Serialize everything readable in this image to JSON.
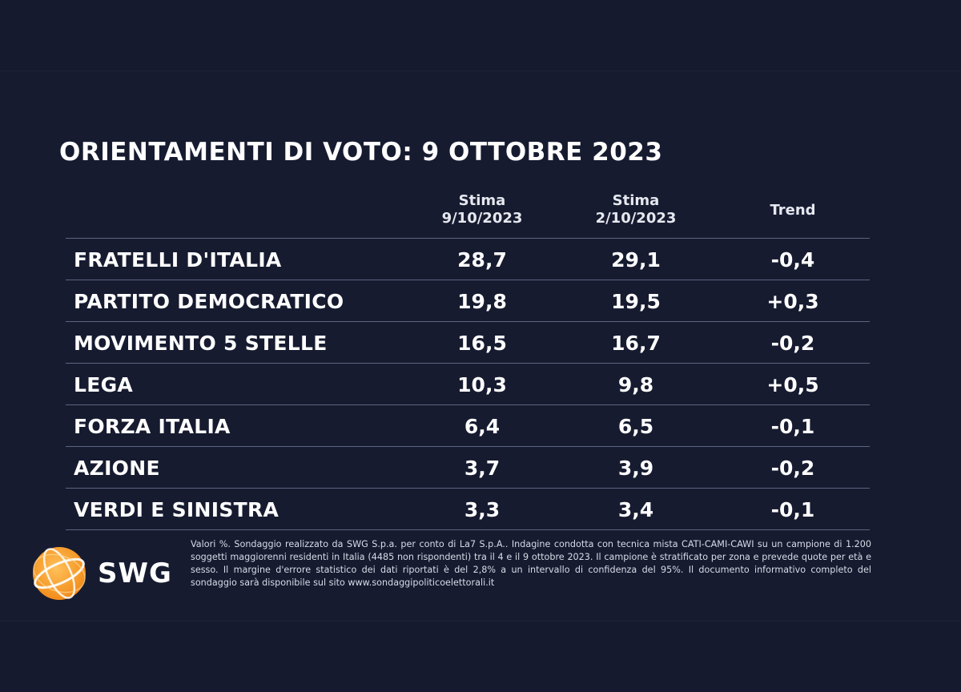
{
  "chart_data": {
    "type": "table",
    "title": "ORIENTAMENTI DI VOTO: 9 OTTOBRE 2023",
    "columns": [
      {
        "line1": "Stima",
        "line2": "9/10/2023"
      },
      {
        "line1": "Stima",
        "line2": "2/10/2023"
      },
      {
        "line1": "Trend",
        "line2": ""
      }
    ],
    "rows": [
      {
        "party": "FRATELLI D'ITALIA",
        "v1": "28,7",
        "v2": "29,1",
        "trend": "-0,4"
      },
      {
        "party": "PARTITO DEMOCRATICO",
        "v1": "19,8",
        "v2": "19,5",
        "trend": "+0,3"
      },
      {
        "party": "MOVIMENTO 5 STELLE",
        "v1": "16,5",
        "v2": "16,7",
        "trend": "-0,2"
      },
      {
        "party": "LEGA",
        "v1": "10,3",
        "v2": "9,8",
        "trend": "+0,5"
      },
      {
        "party": "FORZA ITALIA",
        "v1": "6,4",
        "v2": "6,5",
        "trend": "-0,1"
      },
      {
        "party": "AZIONE",
        "v1": "3,7",
        "v2": "3,9",
        "trend": "-0,2"
      },
      {
        "party": "VERDI E SINISTRA",
        "v1": "3,3",
        "v2": "3,4",
        "trend": "-0,1"
      }
    ]
  },
  "logo": {
    "text": "SWG",
    "colors": {
      "globe_outer": "#f28c1a",
      "globe_inner": "#ffc15a"
    }
  },
  "footnote": "Valori %. Sondaggio realizzato da SWG S.p.a. per conto di La7 S.p.A.. Indagine condotta con tecnica mista CATI-CAMI-CAWI su un campione di 1.200 soggetti maggiorenni residenti in Italia (4485 non rispondenti) tra il 4 e il 9 ottobre 2023. Il campione è stratificato per zona e prevede quote per età e sesso. Il margine d'errore statistico dei dati riportati è del 2,8% a un intervallo di confidenza del 95%. Il documento informativo completo del sondaggio sarà disponibile sul sito www.sondaggipoliticoelettorali.it"
}
